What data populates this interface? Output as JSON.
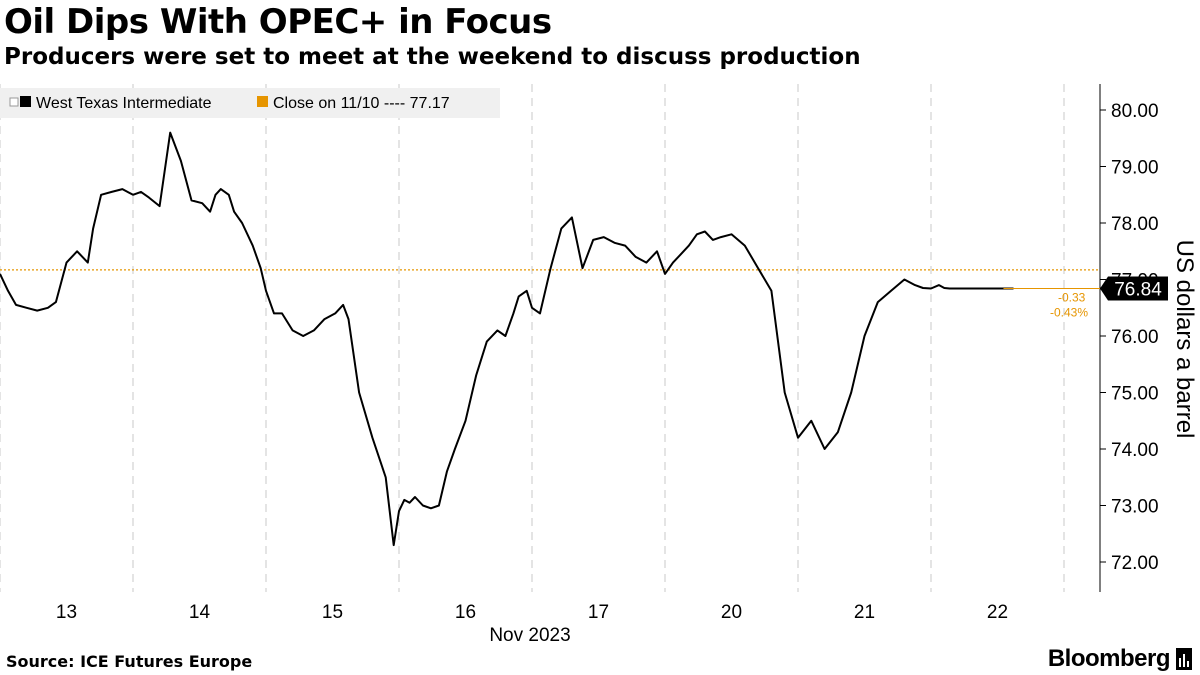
{
  "header": {
    "title": "Oil Dips With OPEC+ in Focus",
    "subtitle": "Producers were set to meet at the weekend to discuss production"
  },
  "footer": {
    "source": "Source: ICE Futures Europe",
    "brand": "Bloomberg"
  },
  "chart_data": {
    "type": "line",
    "title": "Oil Dips With OPEC+ in Focus",
    "subtitle": "Producers were set to meet at the weekend to discuss production",
    "ylabel": "US dollars a barrel",
    "xlabel": "Nov 2023",
    "ylim": [
      71.5,
      80.5
    ],
    "y_ticks": [
      "72.00",
      "73.00",
      "74.00",
      "75.00",
      "76.00",
      "77.00",
      "78.00",
      "79.00",
      "80.00"
    ],
    "x_ticks": [
      "13",
      "14",
      "15",
      "16",
      "17",
      "20",
      "21",
      "22"
    ],
    "grid": "vertical dashed",
    "legend_position": "top-left",
    "series": [
      {
        "name": "West Texas Intermediate",
        "color": "#000000",
        "x": [
          0,
          0.06,
          0.12,
          0.2,
          0.28,
          0.36,
          0.42,
          0.5,
          0.58,
          0.66,
          0.7,
          0.76,
          0.84,
          0.92,
          1.0,
          1.06,
          1.12,
          1.2,
          1.28,
          1.36,
          1.44,
          1.52,
          1.58,
          1.62,
          1.66,
          1.72,
          1.76,
          1.82,
          1.9,
          1.96,
          2.0,
          2.06,
          2.12,
          2.2,
          2.28,
          2.36,
          2.44,
          2.52,
          2.58,
          2.62,
          2.7,
          2.8,
          2.9,
          2.96,
          3.0,
          3.04,
          3.08,
          3.12,
          3.18,
          3.24,
          3.3,
          3.36,
          3.42,
          3.5,
          3.58,
          3.66,
          3.74,
          3.8,
          3.86,
          3.9,
          3.96,
          4.0,
          4.06,
          4.14,
          4.22,
          4.3,
          4.38,
          4.46,
          4.54,
          4.62,
          4.7,
          4.78,
          4.86,
          4.94,
          5.0,
          5.06,
          5.12,
          5.18,
          5.24,
          5.3,
          5.36,
          5.42,
          5.5,
          5.6,
          5.7,
          5.8,
          5.9,
          6.0,
          6.1,
          6.2,
          6.3,
          6.4,
          6.5,
          6.6,
          6.7,
          6.8,
          6.88,
          6.94,
          7.0,
          7.06,
          7.1,
          7.14,
          7.18,
          7.22,
          7.26,
          7.32,
          7.38,
          7.44,
          7.5,
          7.56,
          7.62
        ],
        "values": [
          77.1,
          76.8,
          76.55,
          76.5,
          76.45,
          76.5,
          76.6,
          77.3,
          77.5,
          77.3,
          77.9,
          78.5,
          78.55,
          78.6,
          78.5,
          78.55,
          78.45,
          78.3,
          79.6,
          79.1,
          78.4,
          78.35,
          78.2,
          78.5,
          78.6,
          78.5,
          78.2,
          78.0,
          77.6,
          77.2,
          76.8,
          76.4,
          76.4,
          76.1,
          76.0,
          76.1,
          76.3,
          76.4,
          76.55,
          76.3,
          75.0,
          74.2,
          73.5,
          72.3,
          72.9,
          73.1,
          73.05,
          73.15,
          73.0,
          72.95,
          73.0,
          73.6,
          74.0,
          74.5,
          75.3,
          75.9,
          76.1,
          76.0,
          76.4,
          76.7,
          76.8,
          76.5,
          76.4,
          77.2,
          77.9,
          78.1,
          77.2,
          77.7,
          77.75,
          77.65,
          77.6,
          77.4,
          77.3,
          77.5,
          77.1,
          77.3,
          77.45,
          77.6,
          77.8,
          77.85,
          77.7,
          77.75,
          77.8,
          77.6,
          77.2,
          76.8,
          75.0,
          74.2,
          74.5,
          74.0,
          74.3,
          75.0,
          76.0,
          76.6,
          76.8,
          77.0,
          76.9,
          76.85,
          76.84,
          76.9,
          76.85,
          76.84,
          76.84,
          76.84,
          76.84,
          76.84,
          76.84,
          76.84,
          76.84,
          76.84,
          76.84
        ]
      },
      {
        "name": "Close on 11/10 ---- 77.17",
        "color": "#e69500",
        "values": [
          77.17
        ]
      }
    ],
    "annotations": {
      "last_value": "76.84",
      "change": "-0.33",
      "change_pct": "-0.43%"
    }
  }
}
